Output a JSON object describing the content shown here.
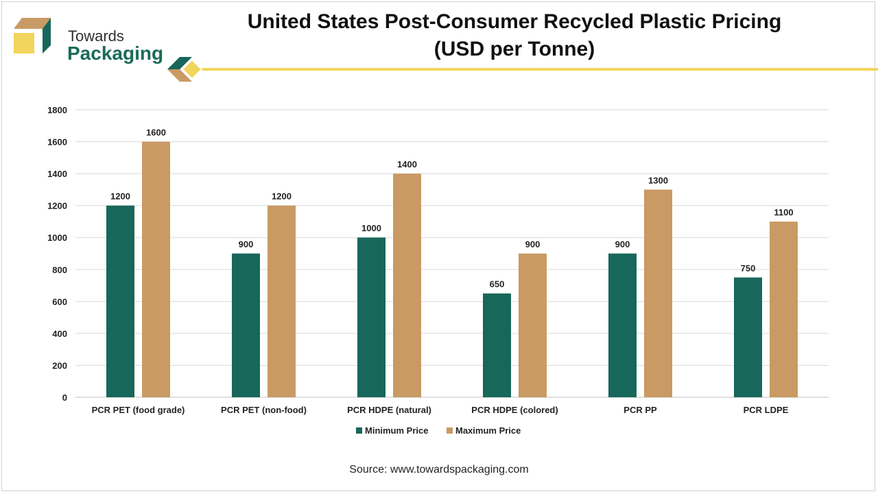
{
  "brand": {
    "line1": "Towards",
    "line2": "Packaging"
  },
  "title_line1": "United States Post-Consumer Recycled Plastic Pricing",
  "title_line2": "(USD per Tonne)",
  "source": "Source: www.towardspackaging.com",
  "colors": {
    "min": "#17675a",
    "max": "#c99a64",
    "grid": "#d9d9d9",
    "accent": "#f2d55c"
  },
  "chart_data": {
    "type": "bar",
    "categories": [
      "PCR PET (food grade)",
      "PCR PET (non-food)",
      "PCR HDPE (natural)",
      "PCR HDPE (colored)",
      "PCR PP",
      "PCR LDPE"
    ],
    "series": [
      {
        "name": "Minimum Price",
        "values": [
          1200,
          900,
          1000,
          650,
          900,
          750
        ]
      },
      {
        "name": "Maximum Price",
        "values": [
          1600,
          1200,
          1400,
          900,
          1300,
          1100
        ]
      }
    ],
    "ylim": [
      0,
      1800
    ],
    "yticks": [
      "0",
      "200",
      "400",
      "600",
      "800",
      "1000",
      "1200",
      "1400",
      "1600",
      "1800"
    ],
    "grid": true,
    "legend": "bottom"
  }
}
